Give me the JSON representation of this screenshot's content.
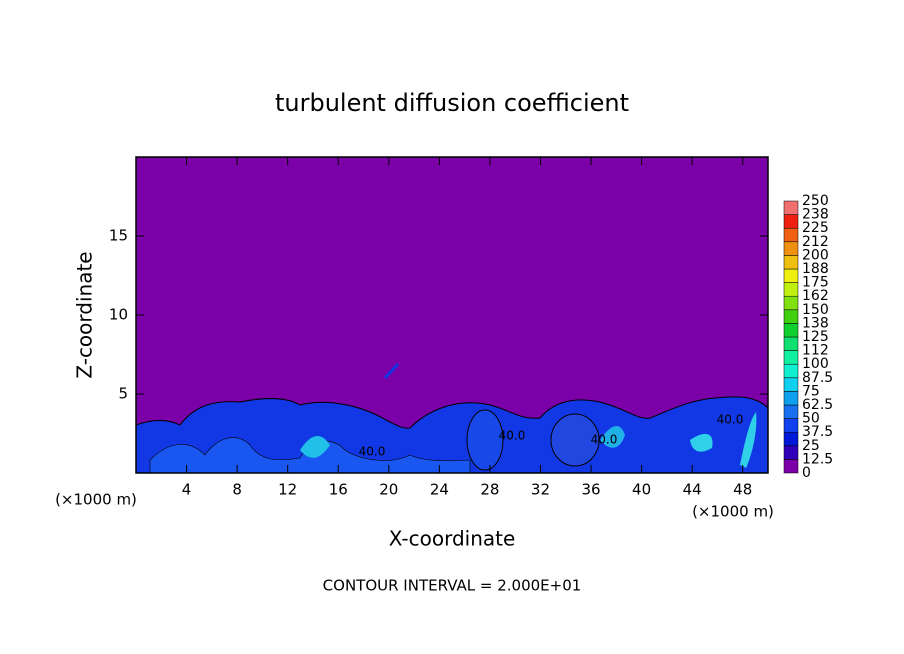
{
  "chart_data": {
    "type": "contour",
    "title": "turbulent diffusion coefficient",
    "xlabel": "X-coordinate",
    "ylabel": "Z-coordinate",
    "x_unit": "(×1000 m)",
    "y_unit": "(×1000 m)",
    "footnote": "CONTOUR INTERVAL = 2.000E+01",
    "xlim": [
      0,
      50
    ],
    "xticks": [
      4,
      8,
      12,
      16,
      20,
      24,
      28,
      32,
      36,
      40,
      44,
      48
    ],
    "ylim": [
      0,
      20
    ],
    "yticks": [
      5,
      10,
      15
    ],
    "contour_labels": [
      "40.0",
      "40.0",
      "40.0",
      "40.0"
    ],
    "colorbar": {
      "levels": [
        0,
        12.5,
        25,
        37.5,
        50,
        62.5,
        75,
        87.5,
        100,
        {
          "value": 112.5,
          "label": "112"
        },
        125,
        {
          "value": 137.5,
          "label": "138"
        },
        150,
        {
          "value": 162.5,
          "label": "162"
        },
        175,
        {
          "value": 187.5,
          "label": "188"
        },
        200,
        {
          "value": 212.5,
          "label": "212"
        },
        225,
        {
          "value": 237.5,
          "label": "238"
        },
        250
      ],
      "colors": [
        "#7b00a8",
        "#3000b8",
        "#0018d8",
        "#1040f0",
        "#1870f0",
        "#10a0f0",
        "#10d0f0",
        "#10f0d0",
        "#10f0a0",
        "#10e070",
        "#10d030",
        "#40d010",
        "#80e010",
        "#c0f010",
        "#f0f010",
        "#f0c010",
        "#f09010",
        "#f06010",
        "#f02010",
        "#f07070"
      ]
    }
  }
}
